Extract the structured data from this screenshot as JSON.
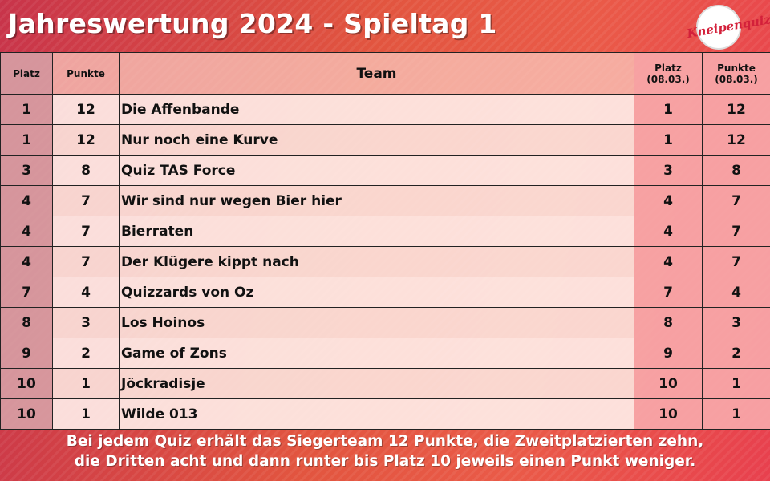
{
  "title": "Jahreswertung 2024 - Spieltag 1",
  "logo": {
    "text": "Kneipenquiz"
  },
  "colors": {
    "background": "#e2553f",
    "accent": "#d3203a"
  },
  "table": {
    "headers": {
      "platz": "Platz",
      "punkte": "Punkte",
      "team": "Team",
      "platz_day": "Platz\n(08.03.)",
      "punkte_day": "Punkte\n(08.03.)"
    },
    "rows": [
      {
        "platz": "1",
        "punkte": "12",
        "team": "Die Affenbande",
        "platz_day": "1",
        "punkte_day": "12"
      },
      {
        "platz": "1",
        "punkte": "12",
        "team": "Nur noch eine Kurve",
        "platz_day": "1",
        "punkte_day": "12"
      },
      {
        "platz": "3",
        "punkte": "8",
        "team": "Quiz TAS Force",
        "platz_day": "3",
        "punkte_day": "8"
      },
      {
        "platz": "4",
        "punkte": "7",
        "team": "Wir sind nur wegen Bier hier",
        "platz_day": "4",
        "punkte_day": "7"
      },
      {
        "platz": "4",
        "punkte": "7",
        "team": "Bierraten",
        "platz_day": "4",
        "punkte_day": "7"
      },
      {
        "platz": "4",
        "punkte": "7",
        "team": "Der Klügere kippt nach",
        "platz_day": "4",
        "punkte_day": "7"
      },
      {
        "platz": "7",
        "punkte": "4",
        "team": "Quizzards von Oz",
        "platz_day": "7",
        "punkte_day": "4"
      },
      {
        "platz": "8",
        "punkte": "3",
        "team": "Los Hoinos",
        "platz_day": "8",
        "punkte_day": "3"
      },
      {
        "platz": "9",
        "punkte": "2",
        "team": "Game of Zons",
        "platz_day": "9",
        "punkte_day": "2"
      },
      {
        "platz": "10",
        "punkte": "1",
        "team": "Jöckradisje",
        "platz_day": "10",
        "punkte_day": "1"
      },
      {
        "platz": "10",
        "punkte": "1",
        "team": "Wilde 013",
        "platz_day": "10",
        "punkte_day": "1"
      }
    ]
  },
  "footer": {
    "line1": "Bei jedem Quiz erhält das Siegerteam 12 Punkte, die Zweitplatzierten zehn,",
    "line2": "die Dritten acht und dann runter bis Platz 10 jeweils einen Punkt weniger."
  }
}
